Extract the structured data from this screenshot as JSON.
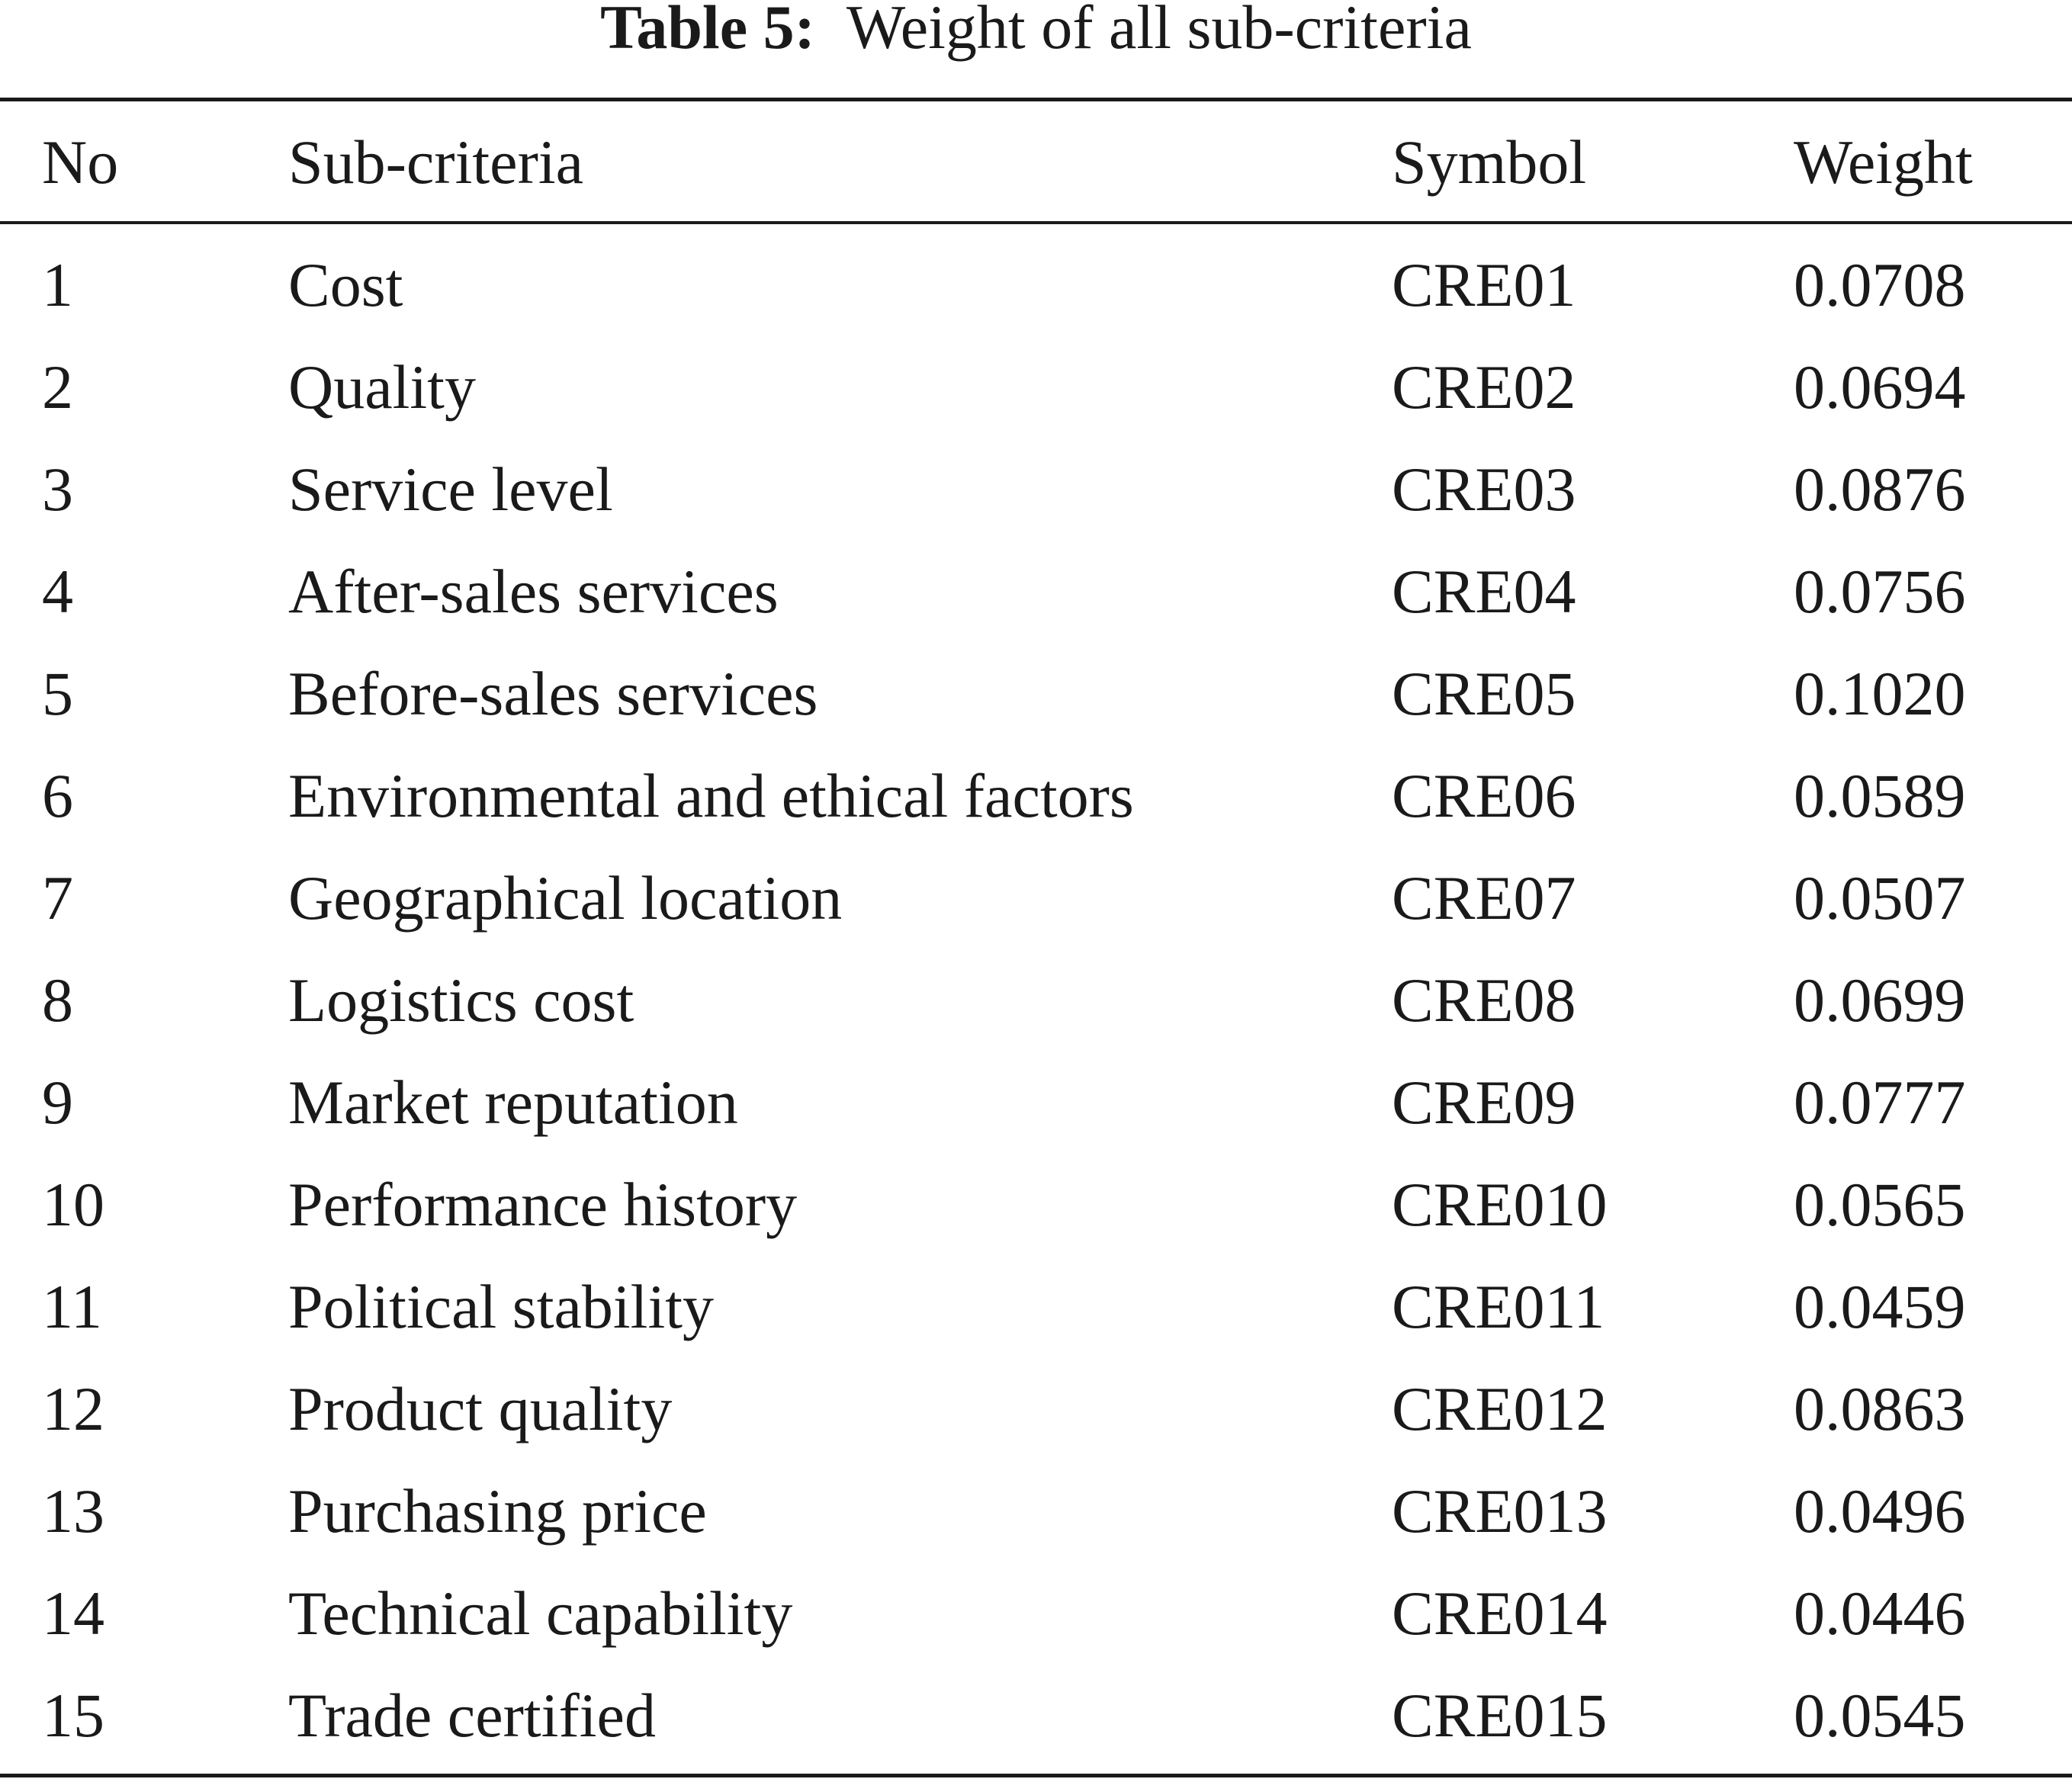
{
  "caption": {
    "label": "Table 5:",
    "title": "Weight of all sub-criteria"
  },
  "table": {
    "headers": [
      "No",
      "Sub-criteria",
      "Symbol",
      "Weight"
    ],
    "rows": [
      {
        "no": "1",
        "sub": "Cost",
        "symbol": "CRE01",
        "weight": "0.0708"
      },
      {
        "no": "2",
        "sub": "Quality",
        "symbol": "CRE02",
        "weight": "0.0694"
      },
      {
        "no": "3",
        "sub": "Service level",
        "symbol": "CRE03",
        "weight": "0.0876"
      },
      {
        "no": "4",
        "sub": "After-sales services",
        "symbol": "CRE04",
        "weight": "0.0756"
      },
      {
        "no": "5",
        "sub": "Before-sales services",
        "symbol": "CRE05",
        "weight": "0.1020"
      },
      {
        "no": "6",
        "sub": "Environmental and ethical factors",
        "symbol": "CRE06",
        "weight": "0.0589"
      },
      {
        "no": "7",
        "sub": "Geographical location",
        "symbol": "CRE07",
        "weight": "0.0507"
      },
      {
        "no": "8",
        "sub": "Logistics cost",
        "symbol": "CRE08",
        "weight": "0.0699"
      },
      {
        "no": "9",
        "sub": "Market reputation",
        "symbol": "CRE09",
        "weight": "0.0777"
      },
      {
        "no": "10",
        "sub": "Performance history",
        "symbol": "CRE010",
        "weight": "0.0565"
      },
      {
        "no": "11",
        "sub": "Political stability",
        "symbol": "CRE011",
        "weight": "0.0459"
      },
      {
        "no": "12",
        "sub": "Product quality",
        "symbol": "CRE012",
        "weight": "0.0863"
      },
      {
        "no": "13",
        "sub": "Purchasing price",
        "symbol": "CRE013",
        "weight": "0.0496"
      },
      {
        "no": "14",
        "sub": "Technical capability",
        "symbol": "CRE014",
        "weight": "0.0446"
      },
      {
        "no": "15",
        "sub": "Trade certified",
        "symbol": "CRE015",
        "weight": "0.0545"
      }
    ]
  }
}
